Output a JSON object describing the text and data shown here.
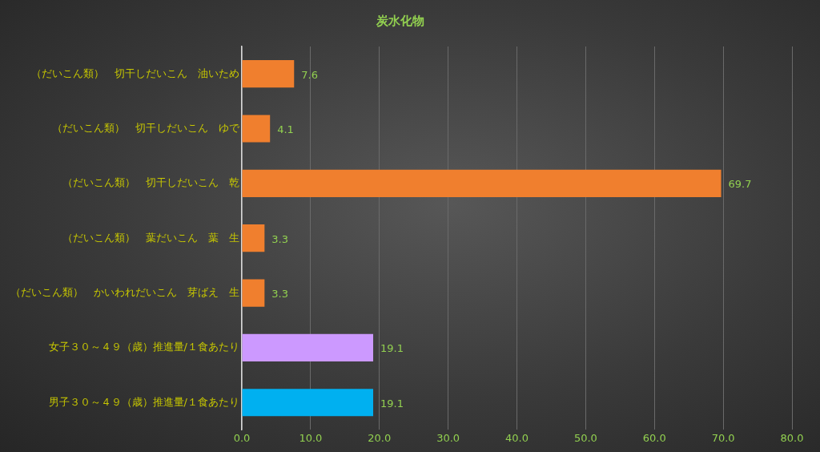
{
  "chart_data": {
    "type": "bar",
    "orientation": "horizontal",
    "title": "炭水化物",
    "categories": [
      "（だいこん類）　切干しだいこん　油いため",
      "（だいこん類）　切干しだいこん　ゆで",
      "（だいこん類）　切干しだいこん　乾",
      "（だいこん類）　葉だいこん　葉　生",
      "（だいこん類）　かいわれだいこん　芽ばえ　生",
      "女子３０～４９（歳）推進量/１食あたり",
      "男子３０～４９（歳）推進量/１食あたり"
    ],
    "values": [
      7.6,
      4.1,
      69.7,
      3.3,
      3.3,
      19.1,
      19.1
    ],
    "colors": [
      "#f07f2e",
      "#f07f2e",
      "#f07f2e",
      "#f07f2e",
      "#f07f2e",
      "#cc99ff",
      "#00b0f0"
    ],
    "xlim": [
      0,
      80
    ],
    "xticks": [
      {
        "value": 0,
        "label": "0.0"
      },
      {
        "value": 10,
        "label": "10.0"
      },
      {
        "value": 20,
        "label": "20.0"
      },
      {
        "value": 30,
        "label": "30.0"
      },
      {
        "value": 40,
        "label": "40.0"
      },
      {
        "value": 50,
        "label": "50.0"
      },
      {
        "value": 60,
        "label": "60.0"
      },
      {
        "value": 70,
        "label": "70.0"
      },
      {
        "value": 80,
        "label": "80.0"
      }
    ],
    "grid": "x",
    "legend": false,
    "data_labels": true
  }
}
